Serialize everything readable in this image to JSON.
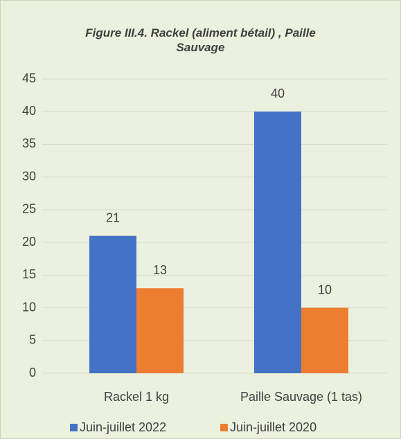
{
  "chart_data": {
    "type": "bar",
    "title": "Figure III.4. Rackel (aliment bétail) , Paille Sauvage",
    "categories": [
      "Rackel 1 kg",
      "Paille Sauvage (1 tas)"
    ],
    "series": [
      {
        "name": "Juin-juillet 2022",
        "color": "#4472c4",
        "values": [
          21,
          40
        ]
      },
      {
        "name": "Juin-juillet 2020",
        "color": "#ed7d31",
        "values": [
          13,
          10
        ]
      }
    ],
    "ylim": [
      0,
      45
    ],
    "yticks": [
      0,
      5,
      10,
      15,
      20,
      25,
      30,
      35,
      40,
      45
    ],
    "grid": true,
    "legend": "bottom"
  }
}
